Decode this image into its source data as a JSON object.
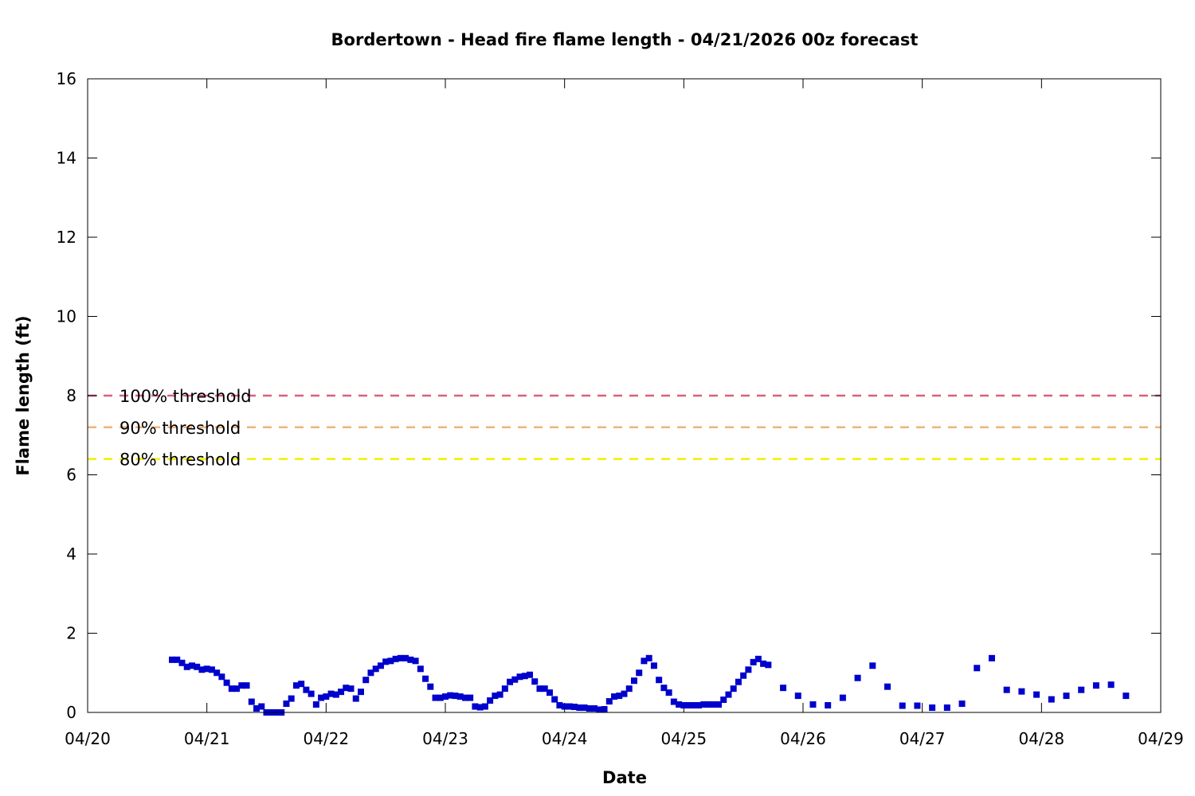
{
  "chart_data": {
    "type": "scatter",
    "title": "Bordertown - Head fire flame length - 04/21/2026 00z forecast",
    "xlabel": "Date",
    "ylabel": "Flame length (ft)",
    "xlim": [
      "04/20",
      "04/29"
    ],
    "ylim": [
      0,
      16
    ],
    "xticks": [
      "04/20",
      "04/21",
      "04/22",
      "04/23",
      "04/24",
      "04/25",
      "04/26",
      "04/27",
      "04/28",
      "04/29"
    ],
    "yticks": [
      0,
      2,
      4,
      6,
      8,
      10,
      12,
      14,
      16
    ],
    "grid": false,
    "thresholds": [
      {
        "label": "100% threshold",
        "value": 8.0,
        "color": "#d9607a"
      },
      {
        "label": "90% threshold",
        "value": 7.2,
        "color": "#f2b27a"
      },
      {
        "label": "80% threshold",
        "value": 6.4,
        "color": "#f0f000"
      }
    ],
    "series": [
      {
        "color": "#0000cc",
        "marker": "square",
        "points": [
          [
            "04/20 17:00",
            1.33
          ],
          [
            "04/20 18:00",
            1.33
          ],
          [
            "04/20 19:00",
            1.25
          ],
          [
            "04/20 20:00",
            1.15
          ],
          [
            "04/20 21:00",
            1.18
          ],
          [
            "04/20 22:00",
            1.15
          ],
          [
            "04/20 23:00",
            1.08
          ],
          [
            "04/21 00:00",
            1.1
          ],
          [
            "04/21 01:00",
            1.08
          ],
          [
            "04/21 02:00",
            1.0
          ],
          [
            "04/21 03:00",
            0.9
          ],
          [
            "04/21 04:00",
            0.75
          ],
          [
            "04/21 05:00",
            0.6
          ],
          [
            "04/21 06:00",
            0.6
          ],
          [
            "04/21 07:00",
            0.68
          ],
          [
            "04/21 08:00",
            0.68
          ],
          [
            "04/21 09:00",
            0.27
          ],
          [
            "04/21 10:00",
            0.1
          ],
          [
            "04/21 11:00",
            0.15
          ],
          [
            "04/21 12:00",
            0.0
          ],
          [
            "04/21 13:00",
            0.0
          ],
          [
            "04/21 14:00",
            0.0
          ],
          [
            "04/21 15:00",
            0.0
          ],
          [
            "04/21 16:00",
            0.22
          ],
          [
            "04/21 17:00",
            0.35
          ],
          [
            "04/21 18:00",
            0.68
          ],
          [
            "04/21 19:00",
            0.72
          ],
          [
            "04/21 20:00",
            0.57
          ],
          [
            "04/21 21:00",
            0.47
          ],
          [
            "04/21 22:00",
            0.2
          ],
          [
            "04/21 23:00",
            0.37
          ],
          [
            "04/22 00:00",
            0.4
          ],
          [
            "04/22 01:00",
            0.47
          ],
          [
            "04/22 02:00",
            0.45
          ],
          [
            "04/22 03:00",
            0.52
          ],
          [
            "04/22 04:00",
            0.62
          ],
          [
            "04/22 05:00",
            0.6
          ],
          [
            "04/22 06:00",
            0.35
          ],
          [
            "04/22 07:00",
            0.52
          ],
          [
            "04/22 08:00",
            0.82
          ],
          [
            "04/22 09:00",
            1.0
          ],
          [
            "04/22 10:00",
            1.1
          ],
          [
            "04/22 11:00",
            1.18
          ],
          [
            "04/22 12:00",
            1.28
          ],
          [
            "04/22 13:00",
            1.3
          ],
          [
            "04/22 14:00",
            1.35
          ],
          [
            "04/22 15:00",
            1.37
          ],
          [
            "04/22 16:00",
            1.37
          ],
          [
            "04/22 17:00",
            1.33
          ],
          [
            "04/22 18:00",
            1.3
          ],
          [
            "04/22 19:00",
            1.1
          ],
          [
            "04/22 20:00",
            0.85
          ],
          [
            "04/22 21:00",
            0.65
          ],
          [
            "04/22 22:00",
            0.37
          ],
          [
            "04/22 23:00",
            0.37
          ],
          [
            "04/23 00:00",
            0.4
          ],
          [
            "04/23 01:00",
            0.43
          ],
          [
            "04/23 02:00",
            0.42
          ],
          [
            "04/23 03:00",
            0.4
          ],
          [
            "04/23 04:00",
            0.37
          ],
          [
            "04/23 05:00",
            0.37
          ],
          [
            "04/23 06:00",
            0.15
          ],
          [
            "04/23 07:00",
            0.13
          ],
          [
            "04/23 08:00",
            0.15
          ],
          [
            "04/23 09:00",
            0.3
          ],
          [
            "04/23 10:00",
            0.42
          ],
          [
            "04/23 11:00",
            0.45
          ],
          [
            "04/23 12:00",
            0.6
          ],
          [
            "04/23 13:00",
            0.77
          ],
          [
            "04/23 14:00",
            0.83
          ],
          [
            "04/23 15:00",
            0.9
          ],
          [
            "04/23 16:00",
            0.92
          ],
          [
            "04/23 17:00",
            0.95
          ],
          [
            "04/23 18:00",
            0.78
          ],
          [
            "04/23 19:00",
            0.6
          ],
          [
            "04/23 20:00",
            0.6
          ],
          [
            "04/23 21:00",
            0.5
          ],
          [
            "04/23 22:00",
            0.33
          ],
          [
            "04/23 23:00",
            0.18
          ],
          [
            "04/24 00:00",
            0.15
          ],
          [
            "04/24 01:00",
            0.15
          ],
          [
            "04/24 02:00",
            0.14
          ],
          [
            "04/24 03:00",
            0.12
          ],
          [
            "04/24 04:00",
            0.12
          ],
          [
            "04/24 05:00",
            0.1
          ],
          [
            "04/24 06:00",
            0.1
          ],
          [
            "04/24 07:00",
            0.07
          ],
          [
            "04/24 08:00",
            0.08
          ],
          [
            "04/24 09:00",
            0.28
          ],
          [
            "04/24 10:00",
            0.4
          ],
          [
            "04/24 11:00",
            0.42
          ],
          [
            "04/24 12:00",
            0.47
          ],
          [
            "04/24 13:00",
            0.6
          ],
          [
            "04/24 14:00",
            0.8
          ],
          [
            "04/24 15:00",
            1.0
          ],
          [
            "04/24 16:00",
            1.3
          ],
          [
            "04/24 17:00",
            1.37
          ],
          [
            "04/24 18:00",
            1.18
          ],
          [
            "04/24 19:00",
            0.82
          ],
          [
            "04/24 20:00",
            0.62
          ],
          [
            "04/24 21:00",
            0.5
          ],
          [
            "04/24 22:00",
            0.27
          ],
          [
            "04/24 23:00",
            0.2
          ],
          [
            "04/25 00:00",
            0.18
          ],
          [
            "04/25 01:00",
            0.18
          ],
          [
            "04/25 02:00",
            0.18
          ],
          [
            "04/25 03:00",
            0.18
          ],
          [
            "04/25 04:00",
            0.2
          ],
          [
            "04/25 05:00",
            0.2
          ],
          [
            "04/25 06:00",
            0.2
          ],
          [
            "04/25 07:00",
            0.2
          ],
          [
            "04/25 08:00",
            0.32
          ],
          [
            "04/25 09:00",
            0.45
          ],
          [
            "04/25 10:00",
            0.6
          ],
          [
            "04/25 11:00",
            0.77
          ],
          [
            "04/25 12:00",
            0.93
          ],
          [
            "04/25 13:00",
            1.08
          ],
          [
            "04/25 14:00",
            1.27
          ],
          [
            "04/25 15:00",
            1.35
          ],
          [
            "04/25 16:00",
            1.23
          ],
          [
            "04/25 17:00",
            1.2
          ],
          [
            "04/25 20:00",
            0.62
          ],
          [
            "04/25 23:00",
            0.42
          ],
          [
            "04/26 02:00",
            0.2
          ],
          [
            "04/26 05:00",
            0.18
          ],
          [
            "04/26 08:00",
            0.37
          ],
          [
            "04/26 11:00",
            0.87
          ],
          [
            "04/26 14:00",
            1.18
          ],
          [
            "04/26 17:00",
            0.65
          ],
          [
            "04/26 20:00",
            0.17
          ],
          [
            "04/26 23:00",
            0.17
          ],
          [
            "04/27 02:00",
            0.12
          ],
          [
            "04/27 05:00",
            0.12
          ],
          [
            "04/27 08:00",
            0.22
          ],
          [
            "04/27 11:00",
            1.12
          ],
          [
            "04/27 14:00",
            1.37
          ],
          [
            "04/27 17:00",
            0.57
          ],
          [
            "04/27 20:00",
            0.53
          ],
          [
            "04/27 23:00",
            0.45
          ],
          [
            "04/28 02:00",
            0.33
          ],
          [
            "04/28 05:00",
            0.42
          ],
          [
            "04/28 08:00",
            0.57
          ],
          [
            "04/28 11:00",
            0.68
          ],
          [
            "04/28 14:00",
            0.7
          ],
          [
            "04/28 17:00",
            0.42
          ]
        ]
      }
    ]
  }
}
